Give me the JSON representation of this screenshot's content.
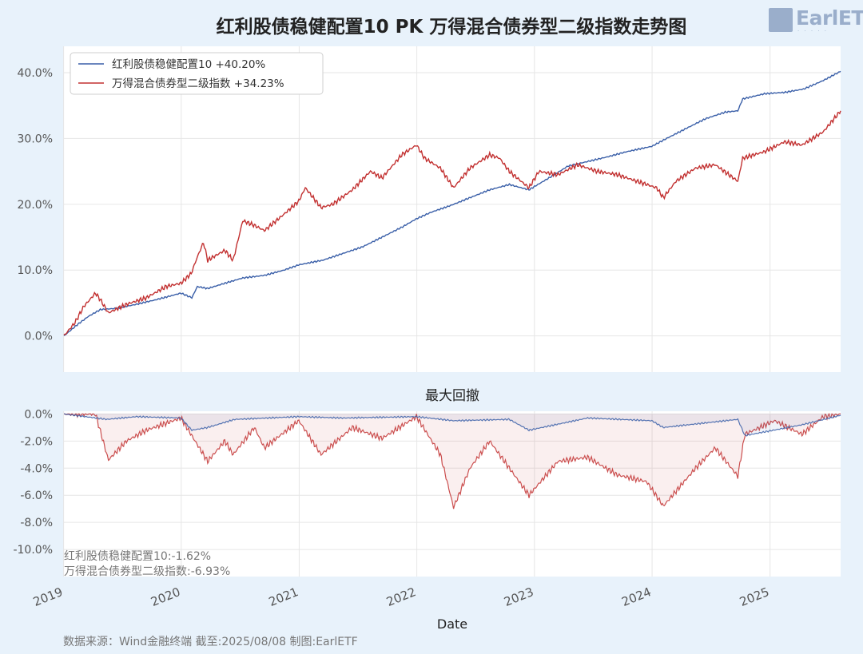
{
  "title": "红利股债稳健配置10 PK 万得混合债券型二级指数走势图",
  "logo": {
    "text": "EarlETF"
  },
  "footer": "数据来源：Wind金融终端 截至:2025/08/08 制图:EarlETF",
  "chart_data": [
    {
      "type": "line",
      "title": "红利股债稳健配置10 PK 万得混合债券型二级指数走势图",
      "ylim": [
        -0.055,
        0.44
      ],
      "y_unit": "%",
      "yticks": [
        "0.0%",
        "10.0%",
        "20.0%",
        "30.0%",
        "40.0%"
      ],
      "xticks": [
        "2019",
        "2020",
        "2021",
        "2022",
        "2023",
        "2024",
        "2025"
      ],
      "xlim": [
        "2019-01-02",
        "2025-08-08"
      ],
      "grid": true,
      "legend_position": "top-left",
      "series": [
        {
          "name": "红利股债稳健配置10",
          "legend": "红利股债稳健配置10  +40.20%",
          "color": "#3a5fa8",
          "points": [
            [
              "2019-01-02",
              0.0
            ],
            [
              "2019-02-15",
              0.018
            ],
            [
              "2019-03-20",
              0.03
            ],
            [
              "2019-04-25",
              0.04
            ],
            [
              "2019-06-15",
              0.042
            ],
            [
              "2019-08-15",
              0.048
            ],
            [
              "2019-10-15",
              0.055
            ],
            [
              "2019-12-31",
              0.065
            ],
            [
              "2020-02-03",
              0.058
            ],
            [
              "2020-02-20",
              0.075
            ],
            [
              "2020-03-23",
              0.072
            ],
            [
              "2020-05-15",
              0.08
            ],
            [
              "2020-07-10",
              0.088
            ],
            [
              "2020-09-15",
              0.092
            ],
            [
              "2020-11-15",
              0.1
            ],
            [
              "2020-12-31",
              0.108
            ],
            [
              "2021-03-15",
              0.115
            ],
            [
              "2021-05-15",
              0.125
            ],
            [
              "2021-07-15",
              0.135
            ],
            [
              "2021-09-15",
              0.15
            ],
            [
              "2021-11-15",
              0.165
            ],
            [
              "2021-12-31",
              0.178
            ],
            [
              "2022-02-15",
              0.188
            ],
            [
              "2022-04-15",
              0.198
            ],
            [
              "2022-06-15",
              0.21
            ],
            [
              "2022-08-15",
              0.222
            ],
            [
              "2022-10-15",
              0.23
            ],
            [
              "2022-12-15",
              0.222
            ],
            [
              "2023-02-15",
              0.24
            ],
            [
              "2023-04-15",
              0.258
            ],
            [
              "2023-06-15",
              0.265
            ],
            [
              "2023-08-15",
              0.272
            ],
            [
              "2023-10-15",
              0.28
            ],
            [
              "2023-12-31",
              0.288
            ],
            [
              "2024-02-15",
              0.3
            ],
            [
              "2024-04-15",
              0.315
            ],
            [
              "2024-06-15",
              0.33
            ],
            [
              "2024-08-15",
              0.34
            ],
            [
              "2024-09-23",
              0.342
            ],
            [
              "2024-10-08",
              0.36
            ],
            [
              "2024-12-15",
              0.368
            ],
            [
              "2025-02-15",
              0.37
            ],
            [
              "2025-04-15",
              0.375
            ],
            [
              "2025-06-15",
              0.388
            ],
            [
              "2025-08-08",
              0.402
            ]
          ]
        },
        {
          "name": "万得混合债券型二级指数",
          "legend": "万得混合债券型二级指数  +34.23%",
          "color": "#c23030",
          "points": [
            [
              "2019-01-02",
              0.0
            ],
            [
              "2019-02-05",
              0.02
            ],
            [
              "2019-03-05",
              0.045
            ],
            [
              "2019-04-10",
              0.065
            ],
            [
              "2019-04-25",
              0.055
            ],
            [
              "2019-05-20",
              0.035
            ],
            [
              "2019-07-15",
              0.048
            ],
            [
              "2019-09-15",
              0.058
            ],
            [
              "2019-11-15",
              0.075
            ],
            [
              "2019-12-31",
              0.08
            ],
            [
              "2020-02-01",
              0.095
            ],
            [
              "2020-02-20",
              0.12
            ],
            [
              "2020-03-10",
              0.142
            ],
            [
              "2020-03-23",
              0.115
            ],
            [
              "2020-05-15",
              0.13
            ],
            [
              "2020-06-10",
              0.115
            ],
            [
              "2020-07-10",
              0.175
            ],
            [
              "2020-08-15",
              0.168
            ],
            [
              "2020-09-15",
              0.16
            ],
            [
              "2020-11-15",
              0.185
            ],
            [
              "2020-12-31",
              0.205
            ],
            [
              "2021-01-20",
              0.225
            ],
            [
              "2021-03-10",
              0.195
            ],
            [
              "2021-04-15",
              0.2
            ],
            [
              "2021-06-15",
              0.222
            ],
            [
              "2021-08-10",
              0.25
            ],
            [
              "2021-09-15",
              0.24
            ],
            [
              "2021-11-15",
              0.275
            ],
            [
              "2021-12-31",
              0.29
            ],
            [
              "2022-01-25",
              0.27
            ],
            [
              "2022-03-15",
              0.255
            ],
            [
              "2022-04-25",
              0.225
            ],
            [
              "2022-06-15",
              0.255
            ],
            [
              "2022-08-15",
              0.275
            ],
            [
              "2022-09-15",
              0.27
            ],
            [
              "2022-10-15",
              0.25
            ],
            [
              "2022-12-15",
              0.225
            ],
            [
              "2023-01-15",
              0.25
            ],
            [
              "2023-03-15",
              0.245
            ],
            [
              "2023-05-15",
              0.26
            ],
            [
              "2023-07-15",
              0.25
            ],
            [
              "2023-09-15",
              0.245
            ],
            [
              "2023-11-15",
              0.235
            ],
            [
              "2024-01-15",
              0.225
            ],
            [
              "2024-02-05",
              0.21
            ],
            [
              "2024-03-15",
              0.235
            ],
            [
              "2024-05-15",
              0.255
            ],
            [
              "2024-07-15",
              0.26
            ],
            [
              "2024-09-23",
              0.235
            ],
            [
              "2024-10-08",
              0.27
            ],
            [
              "2024-12-15",
              0.28
            ],
            [
              "2025-02-15",
              0.295
            ],
            [
              "2025-04-10",
              0.29
            ],
            [
              "2025-06-15",
              0.31
            ],
            [
              "2025-08-08",
              0.342
            ]
          ]
        }
      ]
    },
    {
      "type": "area",
      "title": "最大回撤",
      "ylim": [
        -0.12,
        0.002
      ],
      "yticks": [
        "0.0%",
        "-2.0%",
        "-4.0%",
        "-6.0%",
        "-8.0%",
        "-10.0%"
      ],
      "xticks": [
        "2019",
        "2020",
        "2021",
        "2022",
        "2023",
        "2024",
        "2025"
      ],
      "xlabel": "Date",
      "grid": true,
      "annotations": [
        "红利股债稳健配置10:-1.62%",
        "万得混合债券型二级指数:-6.93%"
      ],
      "series": [
        {
          "name": "红利股债稳健配置10",
          "color": "#3a5fa8",
          "points": [
            [
              "2019-01-02",
              0.0
            ],
            [
              "2019-05-15",
              -0.004
            ],
            [
              "2019-08-15",
              -0.002
            ],
            [
              "2019-12-31",
              -0.003
            ],
            [
              "2020-02-03",
              -0.012
            ],
            [
              "2020-03-23",
              -0.01
            ],
            [
              "2020-06-15",
              -0.004
            ],
            [
              "2020-12-31",
              -0.002
            ],
            [
              "2021-05-15",
              -0.003
            ],
            [
              "2021-12-31",
              -0.002
            ],
            [
              "2022-04-25",
              -0.005
            ],
            [
              "2022-10-15",
              -0.004
            ],
            [
              "2022-12-15",
              -0.012
            ],
            [
              "2023-06-15",
              -0.003
            ],
            [
              "2023-12-31",
              -0.005
            ],
            [
              "2024-02-05",
              -0.01
            ],
            [
              "2024-09-23",
              -0.004
            ],
            [
              "2024-10-15",
              -0.016
            ],
            [
              "2025-04-10",
              -0.008
            ],
            [
              "2025-08-08",
              -0.001
            ]
          ]
        },
        {
          "name": "万得混合债券型二级指数",
          "color": "#c23030",
          "points": [
            [
              "2019-01-02",
              0.0
            ],
            [
              "2019-04-10",
              0.0
            ],
            [
              "2019-05-20",
              -0.034
            ],
            [
              "2019-07-15",
              -0.02
            ],
            [
              "2019-09-15",
              -0.012
            ],
            [
              "2019-12-31",
              -0.003
            ],
            [
              "2020-03-23",
              -0.035
            ],
            [
              "2020-05-15",
              -0.02
            ],
            [
              "2020-06-10",
              -0.03
            ],
            [
              "2020-08-15",
              -0.01
            ],
            [
              "2020-09-15",
              -0.025
            ],
            [
              "2020-12-31",
              -0.005
            ],
            [
              "2021-03-10",
              -0.03
            ],
            [
              "2021-06-15",
              -0.01
            ],
            [
              "2021-09-15",
              -0.018
            ],
            [
              "2021-12-31",
              -0.002
            ],
            [
              "2022-03-15",
              -0.03
            ],
            [
              "2022-04-25",
              -0.069
            ],
            [
              "2022-06-15",
              -0.04
            ],
            [
              "2022-08-15",
              -0.02
            ],
            [
              "2022-10-15",
              -0.04
            ],
            [
              "2022-12-15",
              -0.06
            ],
            [
              "2023-03-15",
              -0.035
            ],
            [
              "2023-06-15",
              -0.032
            ],
            [
              "2023-09-15",
              -0.045
            ],
            [
              "2023-12-15",
              -0.05
            ],
            [
              "2024-02-05",
              -0.068
            ],
            [
              "2024-05-15",
              -0.04
            ],
            [
              "2024-07-15",
              -0.025
            ],
            [
              "2024-09-23",
              -0.046
            ],
            [
              "2024-10-15",
              -0.015
            ],
            [
              "2025-01-15",
              -0.005
            ],
            [
              "2025-04-10",
              -0.015
            ],
            [
              "2025-06-15",
              -0.002
            ],
            [
              "2025-08-08",
              0.0
            ]
          ]
        }
      ]
    }
  ]
}
